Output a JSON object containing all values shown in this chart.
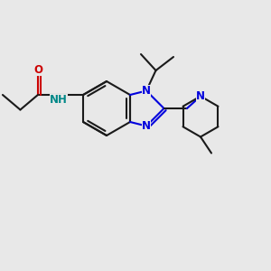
{
  "bg_color": "#e8e8e8",
  "bond_color": "#1a1a1a",
  "N_color": "#0000dd",
  "O_color": "#cc0000",
  "NH_color": "#008888",
  "lw": 1.5,
  "fs": 8.5,
  "xlim": [
    0,
    10
  ],
  "ylim": [
    0,
    10
  ]
}
